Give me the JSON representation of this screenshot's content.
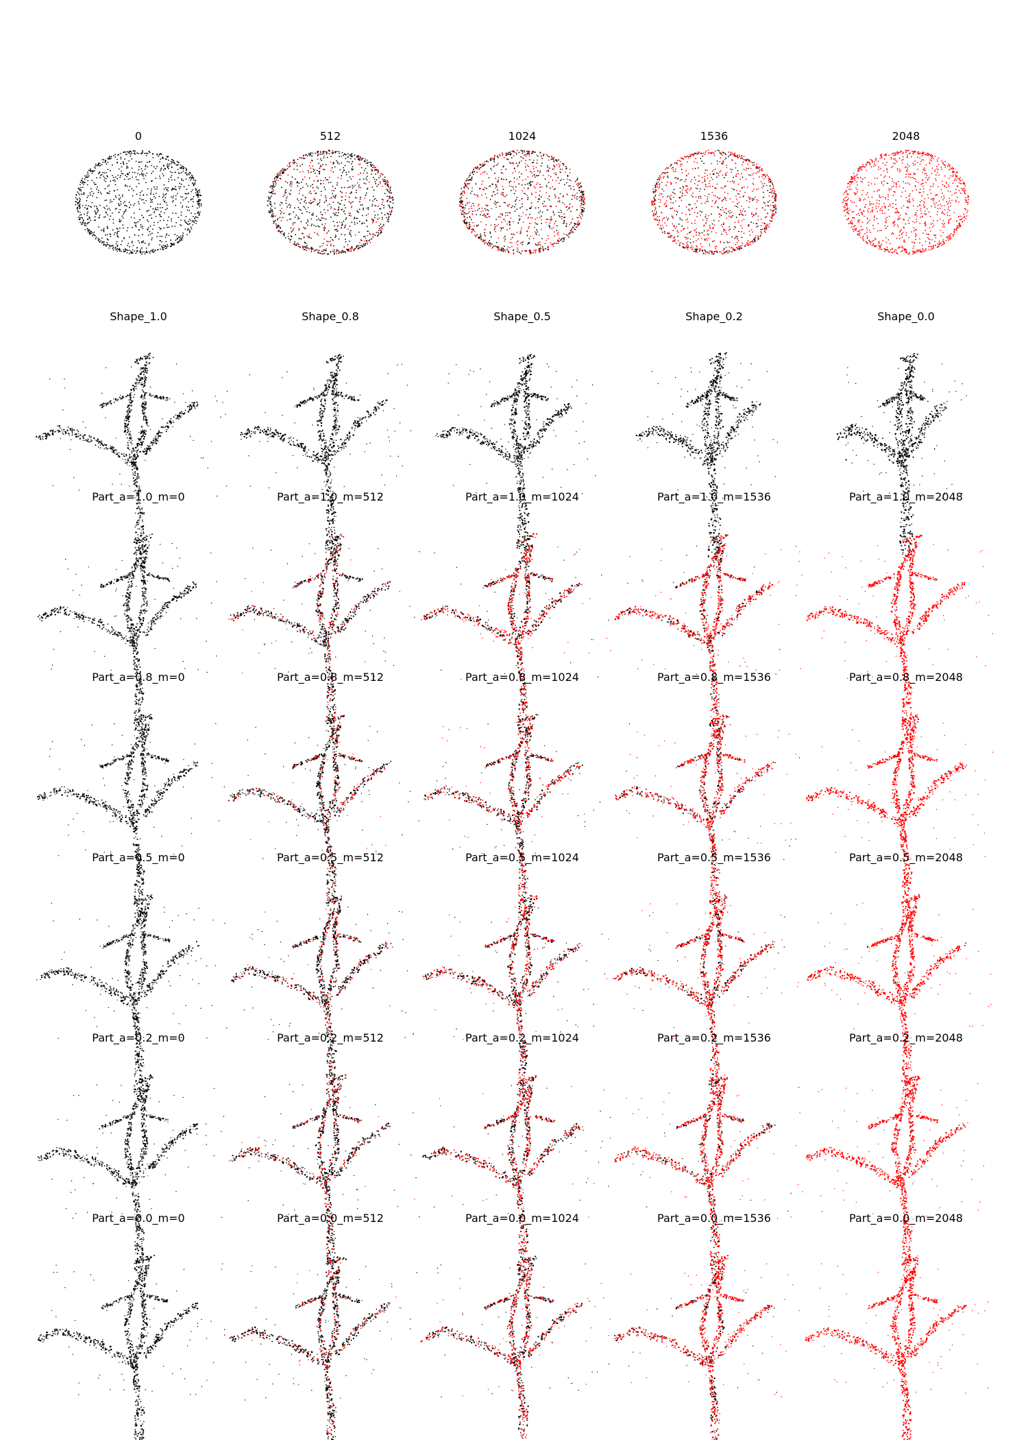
{
  "colors": {
    "original": "#000000",
    "modified": "#ff0000",
    "background": "#ffffff"
  },
  "rows": [
    {
      "kind": "sphere",
      "titles": [
        "0",
        "512",
        "1024",
        "1536",
        "2048"
      ],
      "red_fraction": [
        0.0,
        0.25,
        0.5,
        0.75,
        1.0
      ]
    },
    {
      "kind": "shape",
      "titles": [
        "Shape_1.0",
        "Shape_0.8",
        "Shape_0.5",
        "Shape_0.2",
        "Shape_0.0"
      ],
      "red_fraction": [
        0,
        0,
        0,
        0,
        0
      ]
    },
    {
      "kind": "part",
      "titles": [
        "Part_a=1.0_m=0",
        "Part_a=1.0_m=512",
        "Part_a=1.0_m=1024",
        "Part_a=1.0_m=1536",
        "Part_a=1.0_m=2048"
      ],
      "red_fraction": [
        0.0,
        0.25,
        0.5,
        0.75,
        1.0
      ]
    },
    {
      "kind": "part",
      "titles": [
        "Part_a=0.8_m=0",
        "Part_a=0.8_m=512",
        "Part_a=0.8_m=1024",
        "Part_a=0.8_m=1536",
        "Part_a=0.8_m=2048"
      ],
      "red_fraction": [
        0.0,
        0.25,
        0.5,
        0.75,
        1.0
      ]
    },
    {
      "kind": "part",
      "titles": [
        "Part_a=0.5_m=0",
        "Part_a=0.5_m=512",
        "Part_a=0.5_m=1024",
        "Part_a=0.5_m=1536",
        "Part_a=0.5_m=2048"
      ],
      "red_fraction": [
        0.0,
        0.25,
        0.5,
        0.75,
        1.0
      ]
    },
    {
      "kind": "part",
      "titles": [
        "Part_a=0.2_m=0",
        "Part_a=0.2_m=512",
        "Part_a=0.2_m=1024",
        "Part_a=0.2_m=1536",
        "Part_a=0.2_m=2048"
      ],
      "red_fraction": [
        0.0,
        0.25,
        0.5,
        0.75,
        1.0
      ]
    },
    {
      "kind": "part",
      "titles": [
        "Part_a=0.0_m=0",
        "Part_a=0.0_m=512",
        "Part_a=0.0_m=1024",
        "Part_a=0.0_m=1536",
        "Part_a=0.0_m=2048"
      ],
      "red_fraction": [
        0.0,
        0.25,
        0.5,
        0.75,
        1.0
      ]
    }
  ]
}
